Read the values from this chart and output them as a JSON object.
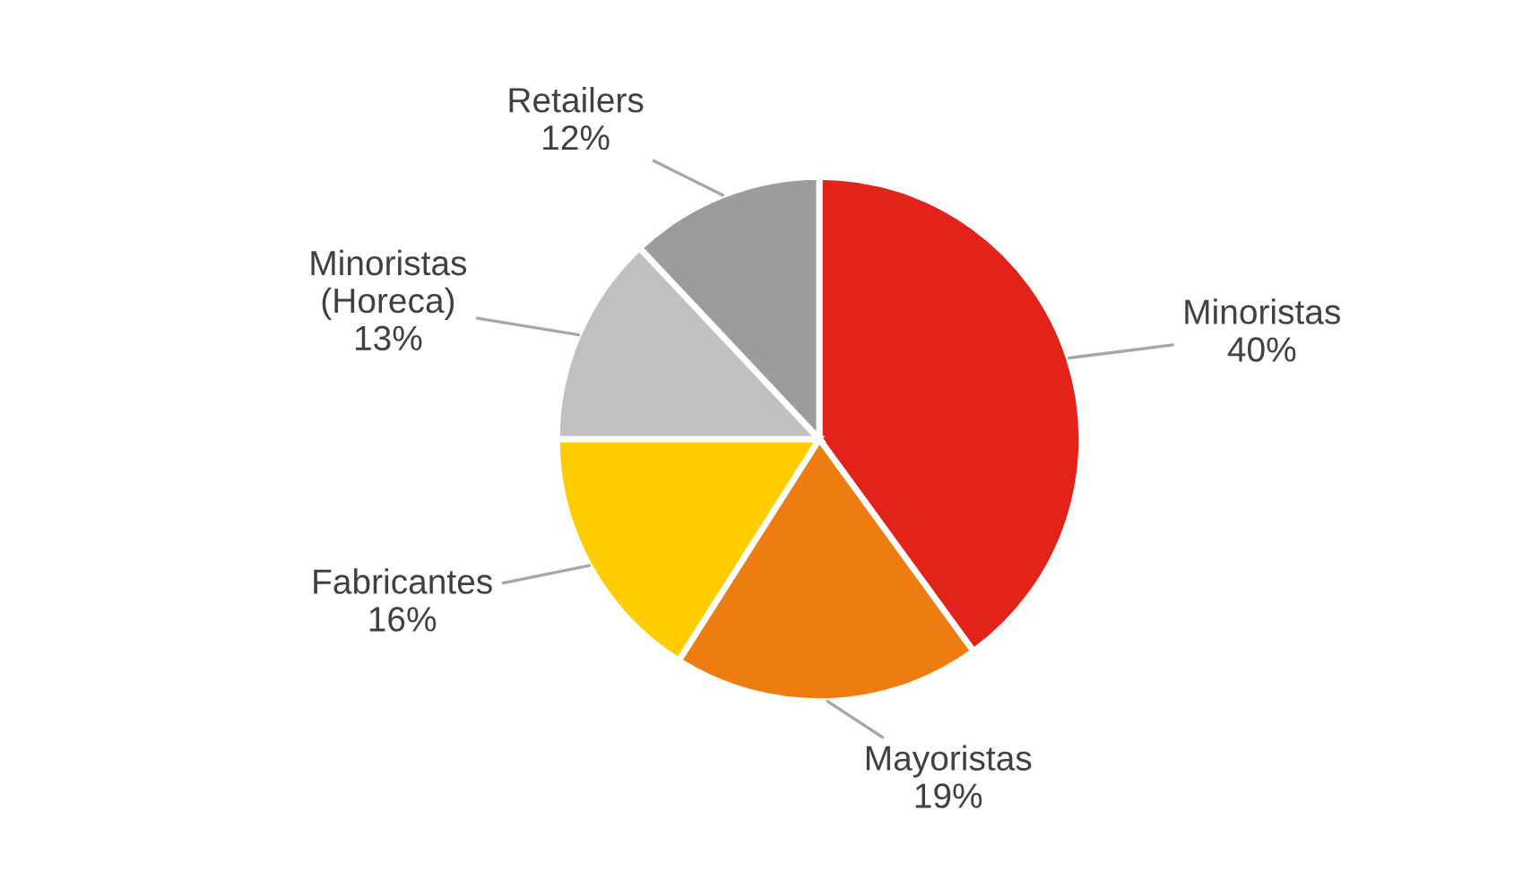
{
  "chart_data": {
    "type": "pie",
    "categories": [
      "Minoristas",
      "Mayoristas",
      "Fabricantes",
      "Minoristas\n(Horeca)",
      "Retailers"
    ],
    "values": [
      40,
      19,
      16,
      13,
      12
    ],
    "value_labels": [
      "40%",
      "19%",
      "16%",
      "13%",
      "12%"
    ],
    "colors": [
      "#e2231a",
      "#ee7d11",
      "#ffcc00",
      "#c1bfbf",
      "#9d9b9c"
    ]
  }
}
